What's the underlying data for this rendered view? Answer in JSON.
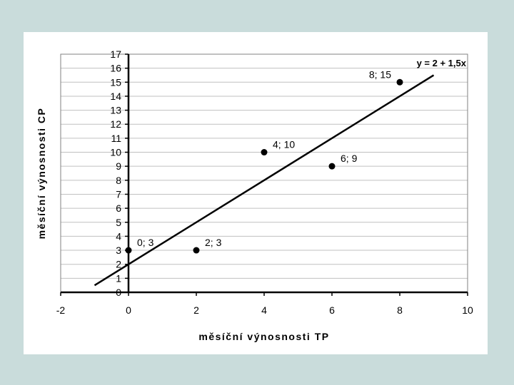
{
  "chart_data": {
    "type": "scatter",
    "xlabel": "měsíční výnosnosti TP",
    "ylabel": "měsíční výnosnosti CP",
    "xlim": [
      -2,
      10
    ],
    "ylim": [
      0,
      17
    ],
    "xticks": [
      -2,
      0,
      2,
      4,
      6,
      8,
      10
    ],
    "yticks": [
      0,
      1,
      2,
      3,
      4,
      5,
      6,
      7,
      8,
      9,
      10,
      11,
      12,
      13,
      14,
      15,
      16,
      17
    ],
    "grid": "horizontal",
    "points": [
      {
        "x": 0,
        "y": 3,
        "label": "0; 3"
      },
      {
        "x": 2,
        "y": 3,
        "label": "2; 3"
      },
      {
        "x": 4,
        "y": 10,
        "label": "4; 10"
      },
      {
        "x": 6,
        "y": 9,
        "label": "6; 9"
      },
      {
        "x": 8,
        "y": 15,
        "label": "8; 15"
      }
    ],
    "trendline": {
      "intercept": 2,
      "slope": 1.5,
      "x_from": -1,
      "x_to": 9,
      "equation": "y = 2 + 1,5x"
    },
    "colors": {
      "points": "#000000",
      "line": "#000000",
      "grid": "#c0c0c0",
      "background": "#c9dcdb"
    }
  }
}
